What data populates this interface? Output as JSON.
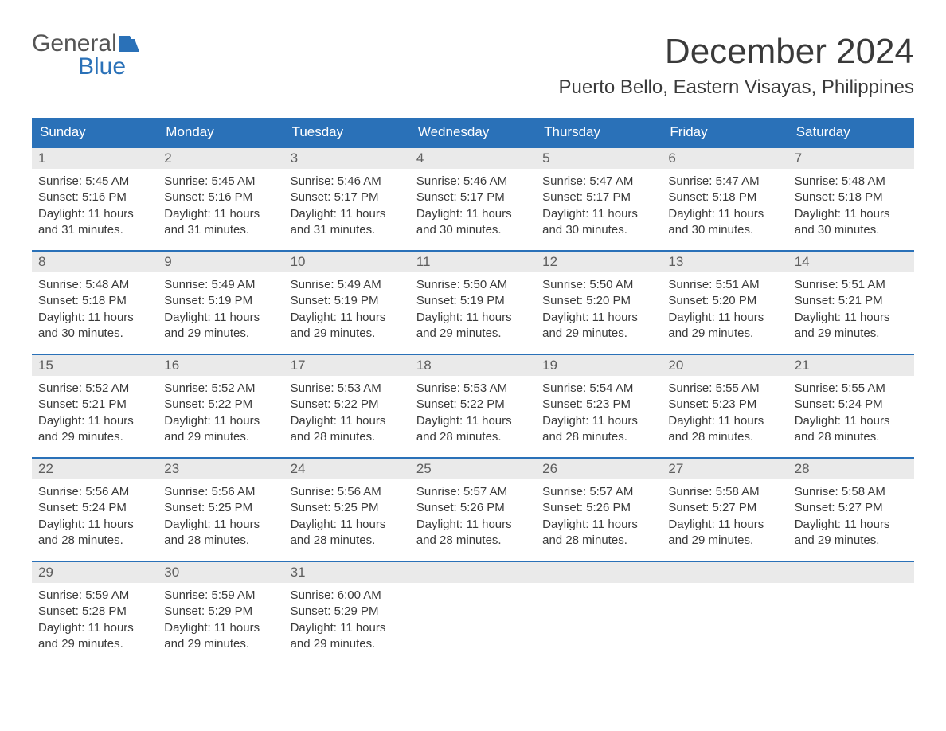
{
  "brand": {
    "word1": "General",
    "word2": "Blue",
    "icon_color": "#2a71b8"
  },
  "title": {
    "month": "December 2024",
    "location": "Puerto Bello, Eastern Visayas, Philippines"
  },
  "colors": {
    "header_bg": "#2a71b8",
    "header_text": "#ffffff",
    "daynum_bg": "#eaeaea",
    "body_text": "#3a3a3a",
    "week_border": "#2a71b8"
  },
  "day_names": [
    "Sunday",
    "Monday",
    "Tuesday",
    "Wednesday",
    "Thursday",
    "Friday",
    "Saturday"
  ],
  "weeks": [
    [
      {
        "n": "1",
        "sr": "5:45 AM",
        "ss": "5:16 PM",
        "dh": "11",
        "dm": "31"
      },
      {
        "n": "2",
        "sr": "5:45 AM",
        "ss": "5:16 PM",
        "dh": "11",
        "dm": "31"
      },
      {
        "n": "3",
        "sr": "5:46 AM",
        "ss": "5:17 PM",
        "dh": "11",
        "dm": "31"
      },
      {
        "n": "4",
        "sr": "5:46 AM",
        "ss": "5:17 PM",
        "dh": "11",
        "dm": "30"
      },
      {
        "n": "5",
        "sr": "5:47 AM",
        "ss": "5:17 PM",
        "dh": "11",
        "dm": "30"
      },
      {
        "n": "6",
        "sr": "5:47 AM",
        "ss": "5:18 PM",
        "dh": "11",
        "dm": "30"
      },
      {
        "n": "7",
        "sr": "5:48 AM",
        "ss": "5:18 PM",
        "dh": "11",
        "dm": "30"
      }
    ],
    [
      {
        "n": "8",
        "sr": "5:48 AM",
        "ss": "5:18 PM",
        "dh": "11",
        "dm": "30"
      },
      {
        "n": "9",
        "sr": "5:49 AM",
        "ss": "5:19 PM",
        "dh": "11",
        "dm": "29"
      },
      {
        "n": "10",
        "sr": "5:49 AM",
        "ss": "5:19 PM",
        "dh": "11",
        "dm": "29"
      },
      {
        "n": "11",
        "sr": "5:50 AM",
        "ss": "5:19 PM",
        "dh": "11",
        "dm": "29"
      },
      {
        "n": "12",
        "sr": "5:50 AM",
        "ss": "5:20 PM",
        "dh": "11",
        "dm": "29"
      },
      {
        "n": "13",
        "sr": "5:51 AM",
        "ss": "5:20 PM",
        "dh": "11",
        "dm": "29"
      },
      {
        "n": "14",
        "sr": "5:51 AM",
        "ss": "5:21 PM",
        "dh": "11",
        "dm": "29"
      }
    ],
    [
      {
        "n": "15",
        "sr": "5:52 AM",
        "ss": "5:21 PM",
        "dh": "11",
        "dm": "29"
      },
      {
        "n": "16",
        "sr": "5:52 AM",
        "ss": "5:22 PM",
        "dh": "11",
        "dm": "29"
      },
      {
        "n": "17",
        "sr": "5:53 AM",
        "ss": "5:22 PM",
        "dh": "11",
        "dm": "28"
      },
      {
        "n": "18",
        "sr": "5:53 AM",
        "ss": "5:22 PM",
        "dh": "11",
        "dm": "28"
      },
      {
        "n": "19",
        "sr": "5:54 AM",
        "ss": "5:23 PM",
        "dh": "11",
        "dm": "28"
      },
      {
        "n": "20",
        "sr": "5:55 AM",
        "ss": "5:23 PM",
        "dh": "11",
        "dm": "28"
      },
      {
        "n": "21",
        "sr": "5:55 AM",
        "ss": "5:24 PM",
        "dh": "11",
        "dm": "28"
      }
    ],
    [
      {
        "n": "22",
        "sr": "5:56 AM",
        "ss": "5:24 PM",
        "dh": "11",
        "dm": "28"
      },
      {
        "n": "23",
        "sr": "5:56 AM",
        "ss": "5:25 PM",
        "dh": "11",
        "dm": "28"
      },
      {
        "n": "24",
        "sr": "5:56 AM",
        "ss": "5:25 PM",
        "dh": "11",
        "dm": "28"
      },
      {
        "n": "25",
        "sr": "5:57 AM",
        "ss": "5:26 PM",
        "dh": "11",
        "dm": "28"
      },
      {
        "n": "26",
        "sr": "5:57 AM",
        "ss": "5:26 PM",
        "dh": "11",
        "dm": "28"
      },
      {
        "n": "27",
        "sr": "5:58 AM",
        "ss": "5:27 PM",
        "dh": "11",
        "dm": "29"
      },
      {
        "n": "28",
        "sr": "5:58 AM",
        "ss": "5:27 PM",
        "dh": "11",
        "dm": "29"
      }
    ],
    [
      {
        "n": "29",
        "sr": "5:59 AM",
        "ss": "5:28 PM",
        "dh": "11",
        "dm": "29"
      },
      {
        "n": "30",
        "sr": "5:59 AM",
        "ss": "5:29 PM",
        "dh": "11",
        "dm": "29"
      },
      {
        "n": "31",
        "sr": "6:00 AM",
        "ss": "5:29 PM",
        "dh": "11",
        "dm": "29"
      },
      null,
      null,
      null,
      null
    ]
  ],
  "labels": {
    "sunrise_prefix": "Sunrise: ",
    "sunset_prefix": "Sunset: ",
    "daylight_prefix": "Daylight: ",
    "hours_word": " hours",
    "and_word": "and ",
    "minutes_word": " minutes."
  }
}
